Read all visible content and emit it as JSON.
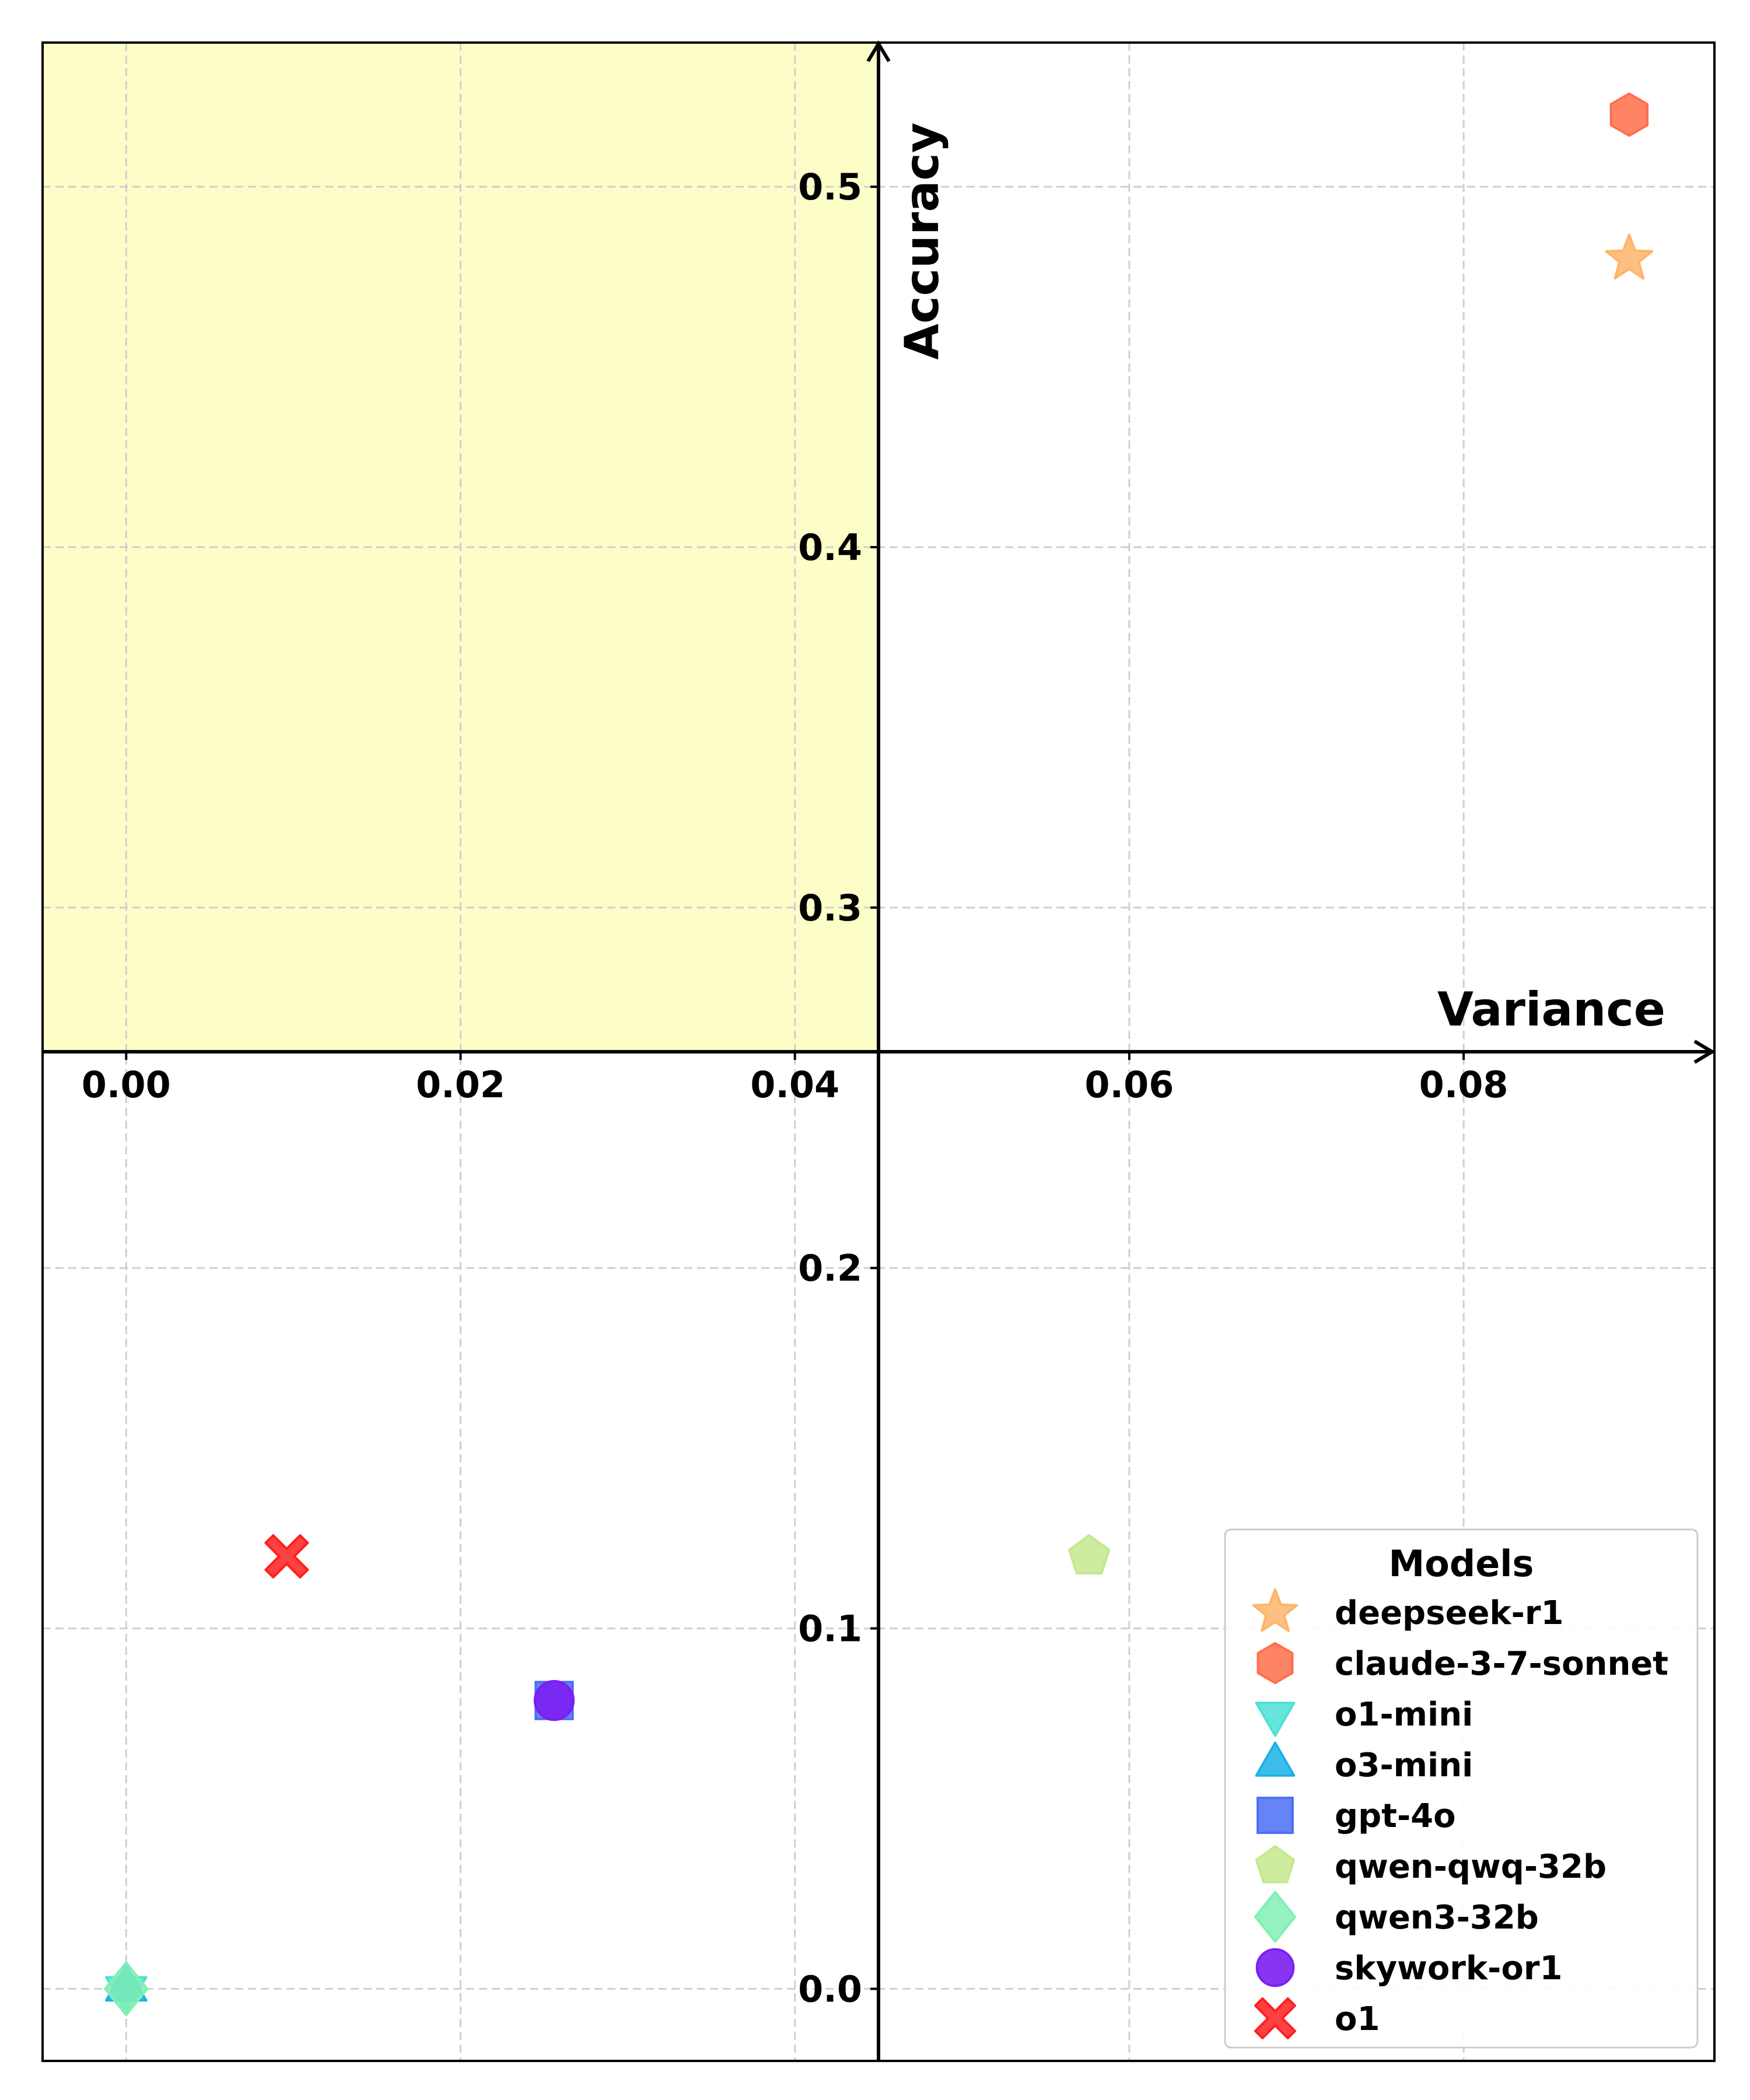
{
  "chart_data": {
    "type": "scatter",
    "xlabel": "Variance",
    "ylabel": "Accuracy",
    "xlim": [
      -0.005,
      0.095
    ],
    "ylim": [
      -0.02,
      0.54
    ],
    "grid": true,
    "x_ticks": [
      "0.00",
      "0.02",
      "0.04",
      "0.06",
      "0.08"
    ],
    "x_tick_values": [
      0.0,
      0.02,
      0.04,
      0.06,
      0.08
    ],
    "y_ticks": [
      "0.0",
      "0.1",
      "0.2",
      "0.3",
      "0.4",
      "0.5"
    ],
    "y_tick_values": [
      0.0,
      0.1,
      0.2,
      0.3,
      0.4,
      0.5
    ],
    "axis_origin": {
      "x": 0.045,
      "y": 0.26
    },
    "highlight_region": {
      "x": [
        -0.005,
        0.045
      ],
      "y": [
        0.26,
        0.54
      ],
      "color": "#fdfdc8"
    },
    "legend": {
      "title": "Models",
      "placement": "lower-right"
    },
    "series": [
      {
        "name": "deepseek-r1",
        "marker": "star",
        "color": "#fdb56a",
        "x": 0.0899,
        "y": 0.48
      },
      {
        "name": "claude-3-7-sonnet",
        "marker": "hexagon",
        "color": "#ff6e4a",
        "x": 0.0899,
        "y": 0.52
      },
      {
        "name": "o1-mini",
        "marker": "triangle-down",
        "color": "#4de0d4",
        "x": 0.0,
        "y": 0.0
      },
      {
        "name": "o3-mini",
        "marker": "triangle-up",
        "color": "#1ab1e6",
        "x": 0.0,
        "y": 0.0
      },
      {
        "name": "gpt-4o",
        "marker": "square",
        "color": "#4c6ef5",
        "x": 0.0256,
        "y": 0.08
      },
      {
        "name": "qwen-qwq-32b",
        "marker": "pentagon",
        "color": "#c5e88f",
        "x": 0.0576,
        "y": 0.12
      },
      {
        "name": "qwen3-32b",
        "marker": "diamond",
        "color": "#80f0b4",
        "x": 0.0,
        "y": 0.0
      },
      {
        "name": "skywork-or1",
        "marker": "circle",
        "color": "#7b1ff2",
        "x": 0.0256,
        "y": 0.08
      },
      {
        "name": "o1",
        "marker": "x",
        "color": "#ff1f1f",
        "x": 0.0096,
        "y": 0.12
      }
    ]
  }
}
